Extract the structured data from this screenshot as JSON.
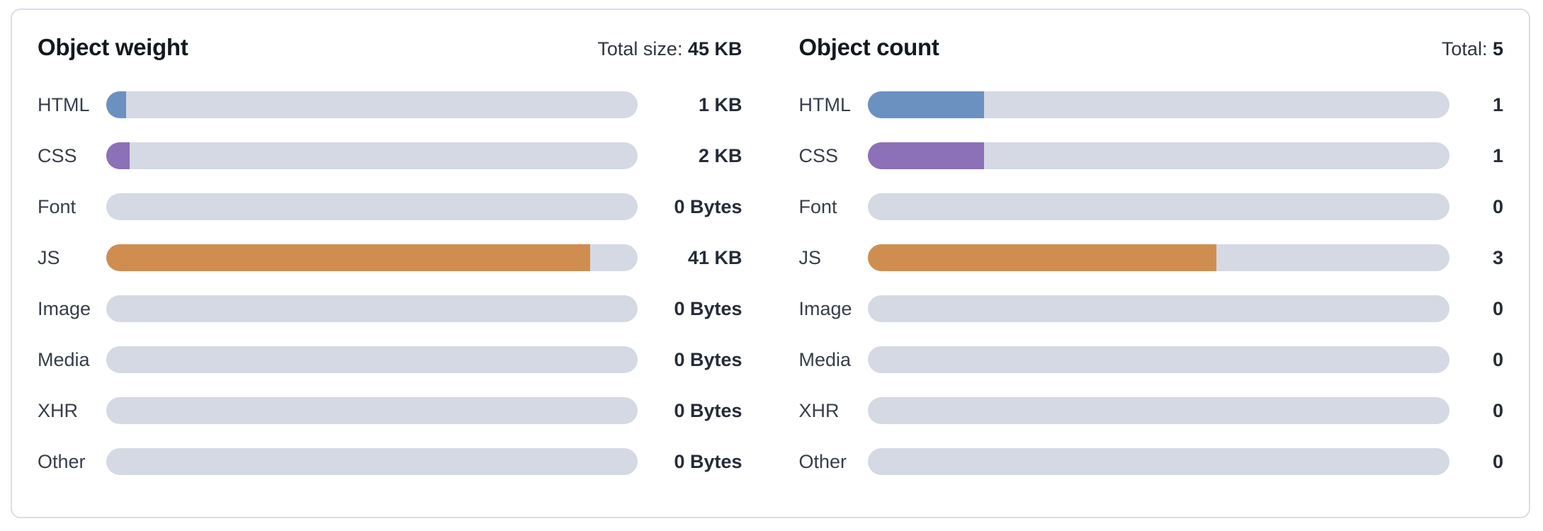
{
  "theme": {
    "track_color": "#d4d9e3",
    "html_color": "#6b91c1",
    "css_color": "#8c70b8",
    "js_color": "#cf8e4f",
    "card_border_color": "#d9dcea",
    "title_color": "#14181f",
    "label_color": "#373e4a",
    "value_color": "#262c37"
  },
  "chart_data": [
    {
      "type": "bar",
      "orientation": "horizontal",
      "title": "Object weight",
      "total_label": "Total size:",
      "total_value": "45 KB",
      "total": 45,
      "units": "KB",
      "legend": false,
      "grid": false,
      "categories": [
        "HTML",
        "CSS",
        "Font",
        "JS",
        "Image",
        "Media",
        "XHR",
        "Other"
      ],
      "values": [
        1,
        2,
        0,
        41,
        0,
        0,
        0,
        0
      ],
      "value_labels": [
        "1 KB",
        "2 KB",
        "0 Bytes",
        "41 KB",
        "0 Bytes",
        "0 Bytes",
        "0 Bytes",
        "0 Bytes"
      ],
      "colors": [
        "#6b91c1",
        "#8c70b8",
        null,
        "#cf8e4f",
        null,
        null,
        null,
        null
      ]
    },
    {
      "type": "bar",
      "orientation": "horizontal",
      "title": "Object count",
      "total_label": "Total:",
      "total_value": "5",
      "total": 5,
      "units": "count",
      "legend": false,
      "grid": false,
      "categories": [
        "HTML",
        "CSS",
        "Font",
        "JS",
        "Image",
        "Media",
        "XHR",
        "Other"
      ],
      "values": [
        1,
        1,
        0,
        3,
        0,
        0,
        0,
        0
      ],
      "value_labels": [
        "1",
        "1",
        "0",
        "3",
        "0",
        "0",
        "0",
        "0"
      ],
      "colors": [
        "#6b91c1",
        "#8c70b8",
        null,
        "#cf8e4f",
        null,
        null,
        null,
        null
      ]
    }
  ]
}
